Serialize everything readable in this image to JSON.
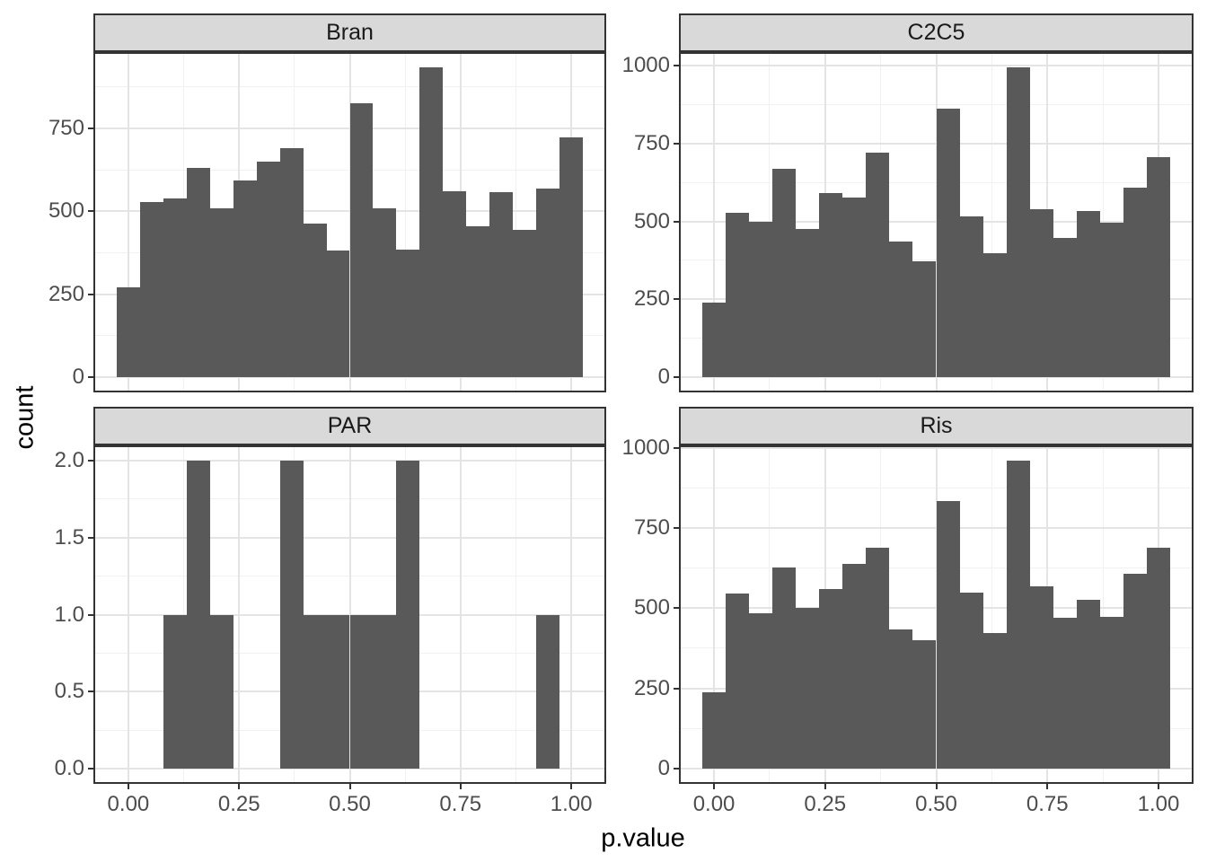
{
  "figure": {
    "y_axis_title": "count",
    "x_axis_title": "p.value",
    "colors": {
      "bar_fill": "#595959",
      "panel_background": "#FFFFFF",
      "panel_border": "#333333",
      "strip_background": "#D9D9D9",
      "strip_border": "#333333",
      "grid_major": "#E4E4E4",
      "grid_minor": "#F1F1F1",
      "axis_text": "#4D4D4D",
      "axis_title": "#000000",
      "tick_mark": "#333333"
    }
  },
  "chart_data": {
    "type": "bar",
    "subtype": "faceted-histogram",
    "title": "",
    "xlabel": "p.value",
    "ylabel": "count",
    "grid": true,
    "legend": false,
    "binwidth": 0.0526,
    "bin_centers": [
      0.0,
      0.0526,
      0.1053,
      0.1579,
      0.2105,
      0.2632,
      0.3158,
      0.3684,
      0.4211,
      0.4737,
      0.5263,
      0.5789,
      0.6316,
      0.6842,
      0.7368,
      0.7895,
      0.8421,
      0.8947,
      0.9474,
      1.0
    ],
    "x_ticks": [
      0,
      0.25,
      0.5,
      0.75,
      1
    ],
    "x_tick_labels": [
      "0.00",
      "0.25",
      "0.50",
      "0.75",
      "1.00"
    ],
    "x_minor_ticks": [
      0.125,
      0.375,
      0.625,
      0.875
    ],
    "xlim": [
      -0.0789,
      1.0789
    ],
    "facets": [
      {
        "label": "Bran",
        "row": 0,
        "col": 0,
        "values": [
          270,
          527,
          539,
          632,
          509,
          594,
          651,
          690,
          463,
          381,
          826,
          510,
          384,
          934,
          561,
          455,
          559,
          445,
          570,
          724
        ],
        "y_max": 934,
        "y_ticks": [
          0,
          250,
          500,
          750
        ],
        "y_tick_labels": [
          "0",
          "250",
          "500",
          "750"
        ],
        "y_minor_ticks": [
          125,
          375,
          625,
          875
        ]
      },
      {
        "label": "C2C5",
        "row": 0,
        "col": 1,
        "values": [
          240,
          528,
          500,
          668,
          475,
          592,
          578,
          720,
          435,
          372,
          862,
          515,
          397,
          995,
          538,
          447,
          533,
          495,
          610,
          707
        ],
        "y_max": 995,
        "y_ticks": [
          0,
          250,
          500,
          750,
          1000
        ],
        "y_tick_labels": [
          "0",
          "250",
          "500",
          "750",
          "1000"
        ],
        "y_minor_ticks": [
          125,
          375,
          625,
          875
        ]
      },
      {
        "label": "PAR",
        "row": 1,
        "col": 0,
        "values": [
          0,
          0,
          1,
          2,
          1,
          0,
          0,
          2,
          1,
          1,
          1,
          1,
          2,
          0,
          0,
          0,
          0,
          0,
          1,
          0
        ],
        "y_max": 2,
        "y_ticks": [
          0,
          0.5,
          1,
          1.5,
          2
        ],
        "y_tick_labels": [
          "0.0",
          "0.5",
          "1.0",
          "1.5",
          "2.0"
        ],
        "y_minor_ticks": [
          0.25,
          0.75,
          1.25,
          1.75
        ]
      },
      {
        "label": "Ris",
        "row": 1,
        "col": 1,
        "values": [
          238,
          545,
          483,
          626,
          502,
          560,
          638,
          690,
          433,
          400,
          833,
          549,
          423,
          960,
          568,
          470,
          527,
          473,
          608,
          690
        ],
        "y_max": 960,
        "y_ticks": [
          0,
          250,
          500,
          750,
          1000
        ],
        "y_tick_labels": [
          "0",
          "250",
          "500",
          "750",
          "1000"
        ],
        "y_minor_ticks": [
          125,
          375,
          625,
          875
        ]
      }
    ]
  }
}
